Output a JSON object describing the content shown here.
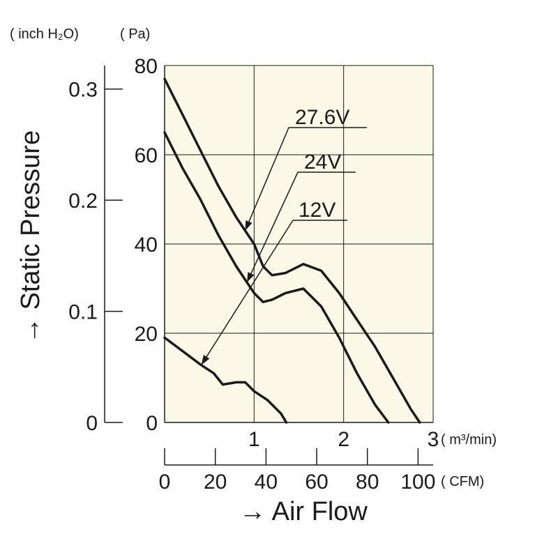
{
  "chart_data": {
    "type": "line",
    "title": "",
    "plot_background": "#fbf8e8",
    "line_color": "#1a1a1a",
    "xlabel": "→ Air Flow",
    "ylabel": "→ Static Pressure",
    "x_unit_primary": "( m³/min)",
    "x_unit_secondary": "( CFM)",
    "y_unit_primary": "( Pa)",
    "y_unit_secondary": "( inch H₂O)",
    "xlim": [
      0,
      3
    ],
    "ylim": [
      0,
      80
    ],
    "x_ticks": [
      1,
      2,
      3
    ],
    "x_tick_labels": [
      "1",
      "2",
      "3"
    ],
    "y_ticks": [
      0,
      20,
      40,
      60,
      80
    ],
    "y_tick_labels": [
      "0",
      "20",
      "40",
      "60",
      "80"
    ],
    "cfm_ticks": [
      0,
      20,
      40,
      60,
      80,
      100
    ],
    "cfm_tick_labels": [
      "0",
      "20",
      "40",
      "60",
      "80",
      "100"
    ],
    "inch_ticks": [
      0,
      0.1,
      0.2,
      0.3
    ],
    "inch_tick_labels": [
      "0",
      "0.1",
      "0.2",
      "0.3"
    ],
    "grid": true,
    "series": [
      {
        "name": "27.6V",
        "x": [
          0,
          0.2,
          0.4,
          0.6,
          0.8,
          1.0,
          1.1,
          1.2,
          1.35,
          1.55,
          1.75,
          1.95,
          2.15,
          2.35,
          2.55,
          2.75,
          2.85
        ],
        "y": [
          77,
          69,
          61,
          53,
          46,
          40,
          35,
          33,
          33.5,
          35.5,
          34,
          29,
          23,
          17,
          10,
          3,
          0
        ]
      },
      {
        "name": "24V",
        "x": [
          0,
          0.2,
          0.4,
          0.6,
          0.8,
          1.0,
          1.1,
          1.2,
          1.35,
          1.55,
          1.75,
          1.95,
          2.15,
          2.35,
          2.5
        ],
        "y": [
          65,
          57,
          50,
          42,
          35,
          29,
          27,
          27.5,
          29,
          30,
          26,
          19,
          11,
          4,
          0
        ]
      },
      {
        "name": "12V",
        "x": [
          0,
          0.2,
          0.4,
          0.55,
          0.65,
          0.8,
          0.9,
          1.0,
          1.15,
          1.3,
          1.36
        ],
        "y": [
          19,
          16,
          13,
          11,
          8.5,
          9,
          9,
          7,
          5,
          2,
          0
        ]
      }
    ]
  }
}
